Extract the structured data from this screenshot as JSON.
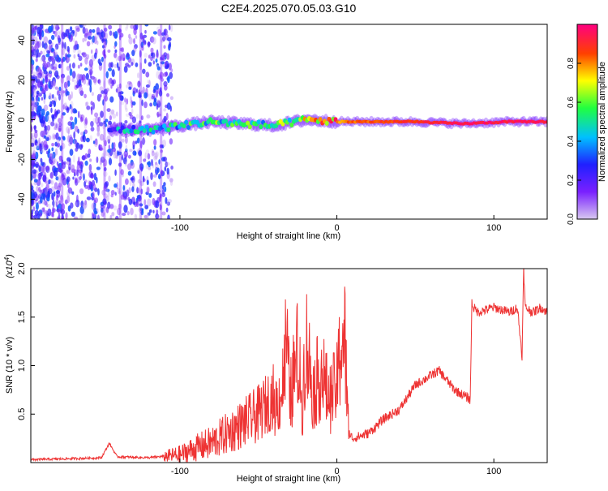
{
  "title": "C2E4.2025.070.05.03.G10",
  "chart_data": [
    {
      "type": "heatmap",
      "xlabel": "Height of straight line (km)",
      "ylabel": "Frequency (Hz)",
      "xlim": [
        -195,
        134
      ],
      "ylim": [
        -50,
        48
      ],
      "xticks": [
        -100,
        0,
        100
      ],
      "xtick_labels": [
        "-100",
        "0",
        "100"
      ],
      "yticks": [
        -40,
        -20,
        0,
        20,
        40
      ],
      "ytick_labels": [
        "-40",
        "-20",
        "0",
        "20",
        "40"
      ],
      "colorbar": {
        "label": "Normalized spectral amplitude",
        "range": [
          0,
          1
        ],
        "ticks": [
          0.0,
          0.2,
          0.4,
          0.6,
          0.8
        ],
        "tick_labels": [
          "0.0",
          "0.2",
          "0.4",
          "0.6",
          "0.8"
        ],
        "colormap": [
          "#d8c8f0",
          "#7a20ff",
          "#2020ff",
          "#00c0ff",
          "#20ff40",
          "#ffff00",
          "#ff4000",
          "#ff0080"
        ]
      },
      "ridge": [
        {
          "x": -145,
          "y": -5,
          "v": 0.3
        },
        {
          "x": -120,
          "y": -5,
          "v": 0.45
        },
        {
          "x": -100,
          "y": -3,
          "v": 0.45
        },
        {
          "x": -80,
          "y": -1,
          "v": 0.5
        },
        {
          "x": -60,
          "y": -2,
          "v": 0.55
        },
        {
          "x": -40,
          "y": -3,
          "v": 0.5
        },
        {
          "x": -20,
          "y": 0,
          "v": 0.65
        },
        {
          "x": 0,
          "y": -1,
          "v": 0.8
        },
        {
          "x": 20,
          "y": -1,
          "v": 0.85
        },
        {
          "x": 50,
          "y": -1,
          "v": 0.9
        },
        {
          "x": 80,
          "y": -2,
          "v": 0.95
        },
        {
          "x": 110,
          "y": -1,
          "v": 0.95
        },
        {
          "x": 134,
          "y": -1,
          "v": 0.95
        }
      ]
    },
    {
      "type": "line",
      "xlabel": "Height of straight line (km)",
      "ylabel": "SNR (10 * v/v)",
      "y_multiplier": "(x10",
      "y_multiplier_exp": "4",
      "y_multiplier_close": ")",
      "xlim": [
        -195,
        134
      ],
      "ylim": [
        0,
        2.0
      ],
      "xticks": [
        -100,
        0,
        100
      ],
      "xtick_labels": [
        "-100",
        "0",
        "100"
      ],
      "yticks": [
        0.5,
        1.0,
        1.5,
        2.0
      ],
      "ytick_labels": [
        "0.5",
        "1.0",
        "1.5",
        "2.0"
      ],
      "series": [
        {
          "color": "#ee3333",
          "x": [
            -195,
            -170,
            -150,
            -145,
            -140,
            -120,
            -100,
            -90,
            -80,
            -70,
            -60,
            -50,
            -45,
            -40,
            -35,
            -32,
            -30,
            -25,
            -22,
            -20,
            -15,
            -10,
            -5,
            0,
            3,
            5,
            7,
            8,
            10,
            20,
            30,
            40,
            50,
            60,
            65,
            70,
            75,
            80,
            85,
            86,
            87,
            90,
            100,
            110,
            115,
            118,
            119,
            120,
            125,
            130,
            134
          ],
          "y": [
            0.03,
            0.04,
            0.05,
            0.2,
            0.06,
            0.05,
            0.08,
            0.15,
            0.2,
            0.3,
            0.4,
            0.5,
            0.6,
            0.7,
            0.9,
            1.6,
            0.8,
            1.4,
            0.7,
            1.6,
            0.9,
            1.2,
            0.8,
            1.0,
            1.6,
            1.6,
            0.6,
            0.3,
            0.25,
            0.3,
            0.45,
            0.55,
            0.8,
            0.9,
            0.95,
            0.85,
            0.75,
            0.7,
            0.65,
            1.65,
            1.6,
            1.55,
            1.6,
            1.55,
            1.6,
            1.1,
            2.0,
            1.6,
            1.55,
            1.6,
            1.55
          ]
        }
      ]
    }
  ]
}
